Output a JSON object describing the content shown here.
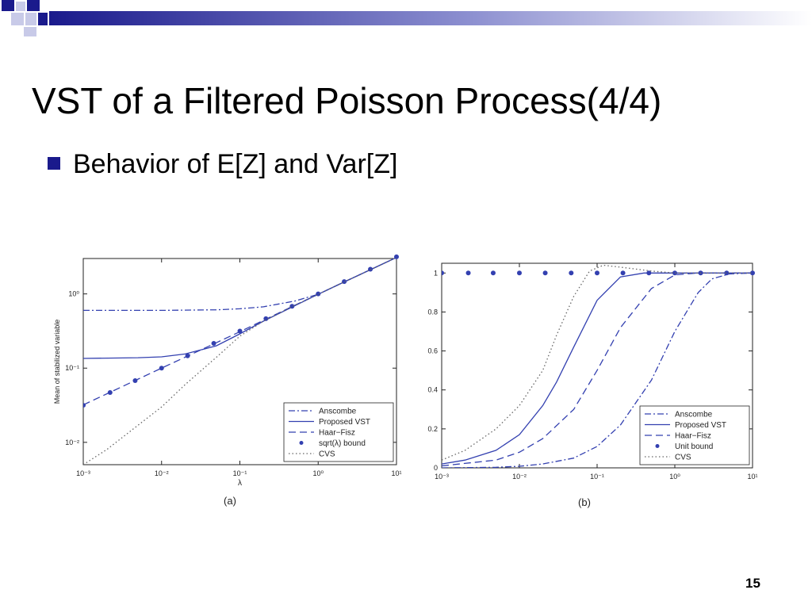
{
  "slide": {
    "title": "VST of a Filtered Poisson Process(4/4)",
    "bullet": "Behavior of E[Z] and Var[Z]",
    "page_number": "15",
    "colors": {
      "accent": "#1a1a8c",
      "curve": "#3340b0",
      "decor_dark": "#1a1a8c",
      "decor_light": "#c8cae8"
    }
  },
  "chart_data": [
    {
      "type": "line",
      "caption": "(a)",
      "xlabel": "λ",
      "ylabel": "Mean of stabilized variable",
      "xscale": "log",
      "yscale": "log",
      "xlim": [
        0.001,
        10
      ],
      "ylim": [
        0.005,
        3
      ],
      "xticks": [
        0.001,
        0.01,
        0.1,
        1,
        10
      ],
      "xtick_labels": [
        "10⁻³",
        "10⁻²",
        "10⁻¹",
        "10⁰",
        "10¹"
      ],
      "yticks": [
        0.01,
        0.1,
        1
      ],
      "ytick_labels": [
        "10⁻²",
        "10⁻¹",
        "10⁰"
      ],
      "legend_position": "bottom-right",
      "series": [
        {
          "name": "Anscombe",
          "style": "dashdot",
          "points": [
            [
              0.001,
              0.6
            ],
            [
              0.01,
              0.6
            ],
            [
              0.05,
              0.61
            ],
            [
              0.1,
              0.63
            ],
            [
              0.2,
              0.67
            ],
            [
              0.5,
              0.8
            ],
            [
              1,
              0.99
            ],
            [
              2,
              1.4
            ],
            [
              5,
              2.2
            ],
            [
              10,
              3.1
            ]
          ]
        },
        {
          "name": "Proposed VST",
          "style": "solid",
          "points": [
            [
              0.001,
              0.135
            ],
            [
              0.005,
              0.138
            ],
            [
              0.01,
              0.142
            ],
            [
              0.02,
              0.155
            ],
            [
              0.05,
              0.2
            ],
            [
              0.1,
              0.29
            ],
            [
              0.2,
              0.43
            ],
            [
              0.5,
              0.69
            ],
            [
              1,
              0.99
            ],
            [
              2,
              1.4
            ],
            [
              5,
              2.2
            ],
            [
              10,
              3.1
            ]
          ]
        },
        {
          "name": "Haar−Fisz",
          "style": "dashed",
          "points": [
            [
              0.001,
              0.032
            ],
            [
              0.01,
              0.1
            ],
            [
              0.05,
              0.22
            ],
            [
              0.1,
              0.31
            ],
            [
              0.2,
              0.44
            ],
            [
              0.5,
              0.7
            ],
            [
              1,
              0.99
            ],
            [
              2,
              1.4
            ],
            [
              5,
              2.2
            ],
            [
              10,
              3.1
            ]
          ]
        },
        {
          "name": "sqrt(λ) bound",
          "style": "dots",
          "points": [
            [
              0.001,
              0.0316
            ],
            [
              0.0022,
              0.0469
            ],
            [
              0.0046,
              0.0678
            ],
            [
              0.01,
              0.1
            ],
            [
              0.0215,
              0.1466
            ],
            [
              0.0464,
              0.2154
            ],
            [
              0.1,
              0.3162
            ],
            [
              0.215,
              0.4637
            ],
            [
              0.464,
              0.6812
            ],
            [
              1,
              1
            ],
            [
              2.15,
              1.4663
            ],
            [
              4.64,
              2.154
            ],
            [
              10,
              3.162
            ]
          ]
        },
        {
          "name": "CVS",
          "style": "dotted",
          "points": [
            [
              0.001,
              0.005
            ],
            [
              0.002,
              0.008
            ],
            [
              0.005,
              0.017
            ],
            [
              0.01,
              0.03
            ],
            [
              0.02,
              0.06
            ],
            [
              0.05,
              0.14
            ],
            [
              0.1,
              0.27
            ],
            [
              0.2,
              0.43
            ],
            [
              0.5,
              0.7
            ],
            [
              1,
              0.99
            ],
            [
              2,
              1.4
            ],
            [
              5,
              2.2
            ],
            [
              10,
              3.1
            ]
          ]
        }
      ]
    },
    {
      "type": "line",
      "caption": "(b)",
      "xlabel": "",
      "ylabel": "",
      "xscale": "log",
      "yscale": "linear",
      "xlim": [
        0.001,
        10
      ],
      "ylim": [
        0,
        1.05
      ],
      "xticks": [
        0.001,
        0.01,
        0.1,
        1,
        10
      ],
      "xtick_labels": [
        "10⁻³",
        "10⁻²",
        "10⁻¹",
        "10⁰",
        "10¹"
      ],
      "yticks": [
        0,
        0.2,
        0.4,
        0.6,
        0.8,
        1
      ],
      "ytick_labels": [
        "0",
        "0.2",
        "0.4",
        "0.6",
        "0.8",
        "1"
      ],
      "legend_position": "bottom-right",
      "series": [
        {
          "name": "Anscombe",
          "style": "dashdot",
          "points": [
            [
              0.001,
              0
            ],
            [
              0.005,
              0.003
            ],
            [
              0.01,
              0.008
            ],
            [
              0.02,
              0.02
            ],
            [
              0.05,
              0.05
            ],
            [
              0.1,
              0.11
            ],
            [
              0.2,
              0.22
            ],
            [
              0.5,
              0.45
            ],
            [
              1,
              0.7
            ],
            [
              2,
              0.9
            ],
            [
              3,
              0.97
            ],
            [
              5,
              0.995
            ],
            [
              10,
              1
            ]
          ]
        },
        {
          "name": "Proposed VST",
          "style": "solid",
          "points": [
            [
              0.001,
              0.02
            ],
            [
              0.002,
              0.04
            ],
            [
              0.005,
              0.09
            ],
            [
              0.01,
              0.17
            ],
            [
              0.02,
              0.32
            ],
            [
              0.03,
              0.44
            ],
            [
              0.05,
              0.62
            ],
            [
              0.1,
              0.86
            ],
            [
              0.2,
              0.98
            ],
            [
              0.4,
              1
            ],
            [
              10,
              1
            ]
          ]
        },
        {
          "name": "Haar−Fisz",
          "style": "dashed",
          "points": [
            [
              0.001,
              0.01
            ],
            [
              0.005,
              0.04
            ],
            [
              0.01,
              0.08
            ],
            [
              0.02,
              0.15
            ],
            [
              0.05,
              0.3
            ],
            [
              0.1,
              0.5
            ],
            [
              0.2,
              0.72
            ],
            [
              0.5,
              0.92
            ],
            [
              1,
              0.99
            ],
            [
              2,
              1
            ],
            [
              10,
              1
            ]
          ]
        },
        {
          "name": "Unit bound",
          "style": "dots",
          "points": [
            [
              0.001,
              1
            ],
            [
              0.0022,
              1
            ],
            [
              0.0046,
              1
            ],
            [
              0.01,
              1
            ],
            [
              0.0215,
              1
            ],
            [
              0.0464,
              1
            ],
            [
              0.1,
              1
            ],
            [
              0.215,
              1
            ],
            [
              0.464,
              1
            ],
            [
              1,
              1
            ],
            [
              2.15,
              1
            ],
            [
              4.64,
              1
            ],
            [
              10,
              1
            ]
          ]
        },
        {
          "name": "CVS",
          "style": "dotted",
          "points": [
            [
              0.001,
              0.04
            ],
            [
              0.002,
              0.09
            ],
            [
              0.005,
              0.2
            ],
            [
              0.01,
              0.32
            ],
            [
              0.02,
              0.5
            ],
            [
              0.03,
              0.68
            ],
            [
              0.05,
              0.88
            ],
            [
              0.08,
              1.01
            ],
            [
              0.12,
              1.04
            ],
            [
              0.2,
              1.03
            ],
            [
              0.5,
              1.01
            ],
            [
              1,
              1
            ],
            [
              10,
              1
            ]
          ]
        }
      ]
    }
  ]
}
